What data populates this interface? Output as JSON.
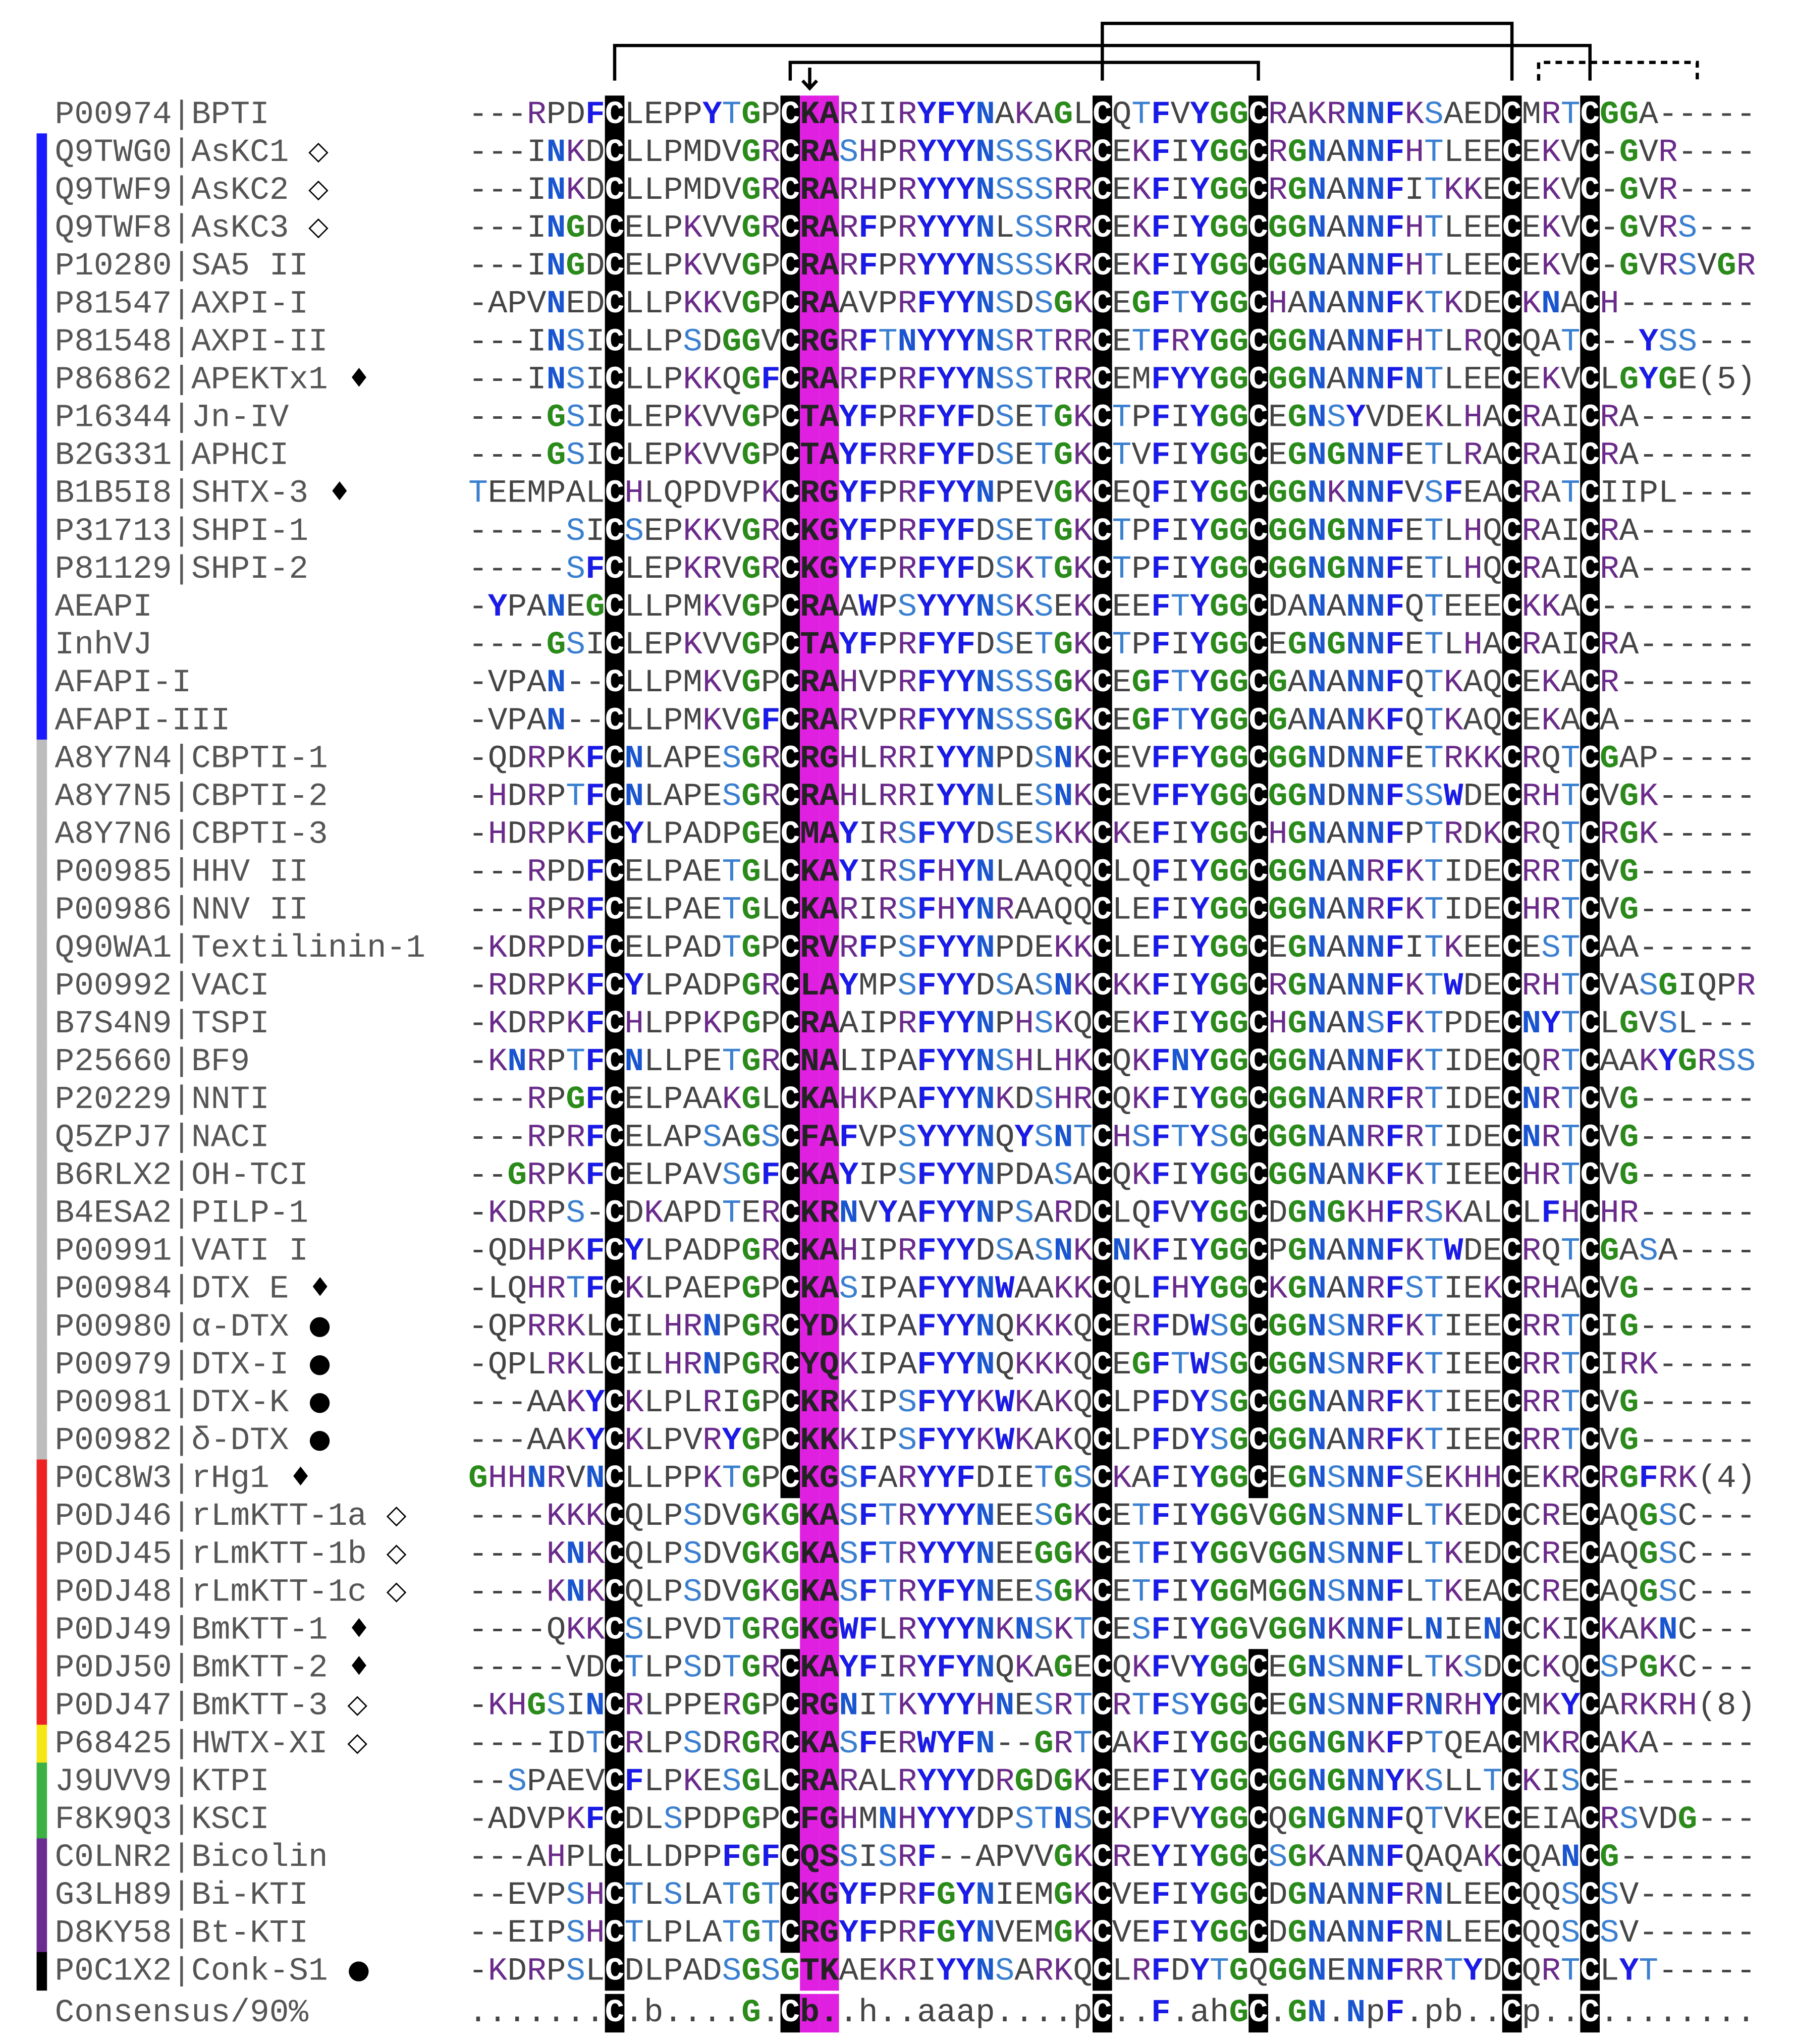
{
  "alignment": {
    "rows": [
      {
        "label": "P00974|BPTI",
        "sequence": "---RPDFCLEPPYTGPCKARIIRYFYNAKAGLCQTFVYGGCRAKRNNFKSAEDCMRTCGGA-----"
      },
      {
        "label": "Q9TWG0|AsKC1",
        "marker": "◇",
        "bar": "#1a1aff",
        "sequence": "---INKDCLLPMDVGRCRASHPRYYYNSSSKRCEKFIYGGCRGNANNFHTLEECEKVC-GVR----"
      },
      {
        "label": "Q9TWF9|AsKC2",
        "marker": "◇",
        "bar": "#1a1aff",
        "sequence": "---INKDCLLPMDVGRCRARHPRYYYNSSSRRCEKFIYGGCRGNANNFITKKECEKVC-GVR----"
      },
      {
        "label": "Q9TWF8|AsKC3",
        "marker": "◇",
        "bar": "#1a1aff",
        "sequence": "---INGDCELPKVVGRCRARFPRYYYNLSSRRCEKFIYGGCGGNANNFHTLEECEKVC-GVRS---"
      },
      {
        "label": "P10280|SA5 II",
        "bar": "#1a1aff",
        "sequence": "---INGDCELPKVVGPCRARFPRYYYNSSSKRCEKFIYGGCGGNANNFHTLEECEKVC-GVRSVGR"
      },
      {
        "label": "P81547|AXPI-I",
        "bar": "#1a1aff",
        "sequence": "-APVNEDCLLPKKVGPCRAAVPRFYYNSDSGKCEGFTYGGCHANANNFKTKDECKNACH-------"
      },
      {
        "label": "P81548|AXPI-II",
        "bar": "#1a1aff",
        "sequence": "---INSICLLPSDGGVCRGRFTNYYYNSRTRRCETFRYGGCGGNANNFHTLRQCQATC--YSS---"
      },
      {
        "label": "P86862|APEKTx1",
        "marker": "♦",
        "bar": "#1a1aff",
        "sequence": "---INSICLLPKKQGFCRARFPRFYYNSSTRRCEMFYYGGCGGNANNFNTLEECEKVCLGYGE(5)"
      },
      {
        "label": "P16344|Jn-IV",
        "bar": "#1a1aff",
        "sequence": "----GSICLEPKVVGPCTAYFPRFYFDSETGKCTPFIYGGCEGNSYVDEKLHACRAICRA------"
      },
      {
        "label": "B2G331|APHCI",
        "bar": "#1a1aff",
        "sequence": "----GSICLEPKVVGPCTAYFRRFYFDSETGKCTVFIYGGCEGNGNNFETLRACRAICRA------"
      },
      {
        "label": "B1B5I8|SHTX-3",
        "marker": "♦",
        "bar": "#1a1aff",
        "sequence": "TEEMPALCHLQPDVPKCRGYFPRFYYNPEVGKCEQFIYGGCGGNKNNFVSFEACRATCIIPL----"
      },
      {
        "label": "P31713|SHPI-1",
        "bar": "#1a1aff",
        "sequence": "-----SICSEPKKVGRCKGYFPRFYFDSETGKCTPFIYGGCGGNGNNFETLHQCRAICRA------"
      },
      {
        "label": "P81129|SHPI-2",
        "bar": "#1a1aff",
        "sequence": "-----SFCLEPKRVGRCKGYFPRFYFDSKTGKCTPFIYGGCGGNGNNFETLHQCRAICRA------"
      },
      {
        "label": "AEAPI",
        "bar": "#1a1aff",
        "sequence": "-YPANEGCLLPMKVGPCRAAWPSYYYNSKSEKCEEFTYGGCDANANNFQTEEECKKAC--------"
      },
      {
        "label": "InhVJ",
        "bar": "#1a1aff",
        "sequence": "----GSICLEPKVVGPCTAYFPRFYFDSETGKCTPFIYGGCEGNGNNFETLHACRAICRA------"
      },
      {
        "label": "AFAPI-I",
        "bar": "#1a1aff",
        "sequence": "-VPAN--CLLPMKVGPCRAHVPRFYYNSSSGKCEGFTYGGCGANANNFQTKAQCEKACR-------"
      },
      {
        "label": "AFAPI-III",
        "bar": "#1a1aff",
        "sequence": "-VPAN--CLLPMKVGFCRARVPRFYYNSSSGKCEGFTYGGCGANANKFQTKAQCEKACA-------"
      },
      {
        "label": "A8Y7N4|CBPTI-1",
        "bar": "#bdbdbd",
        "sequence": "-QDRPKFCNLAPESGRCRGHLRRIYYNPDSNKCEVFFYGGCGGNDNNFETRKKCRQTCGAP-----"
      },
      {
        "label": "A8Y7N5|CBPTI-2",
        "bar": "#bdbdbd",
        "sequence": "-HDRPTFCNLAPESGRCRAHLRRIYYNLESNKCEVFFYGGCGGNDNNFSSWDECRHTCVGK-----"
      },
      {
        "label": "A8Y7N6|CBPTI-3",
        "bar": "#bdbdbd",
        "sequence": "-HDRPKFCYLPADPGECMAYIRSFYYDSESKKCKEFIYGGCHGNANNFPTRDKCRQTCRGK-----"
      },
      {
        "label": "P00985|HHV II",
        "bar": "#bdbdbd",
        "sequence": "---RPDFCELPAETGLCKAYIRSFHYNLAAQQCLQFIYGGCGGNANRFKTIDECRRTCVG------"
      },
      {
        "label": "P00986|NNV II",
        "bar": "#bdbdbd",
        "sequence": "---RPRFCELPAETGLCKARIRSFHYNRAAQQCLEFIYGGCGGNANRFKTIDECHRTCVG------"
      },
      {
        "label": "Q90WA1|Textilinin-1",
        "bar": "#bdbdbd",
        "sequence": "-KDRPDFCELPADTGPCRVRFPSFYYNPDEKKCLEFIYGGCEGNANNFITKEECESTCAA------"
      },
      {
        "label": "P00992|VACI",
        "bar": "#bdbdbd",
        "sequence": "-RDRPKFCYLPADPGRCLAYMPSFYYDSASNKCKKFIYGGCRGNANNFKTWDECRHTCVASGIQPR"
      },
      {
        "label": "B7S4N9|TSPI",
        "bar": "#bdbdbd",
        "sequence": "-KDRPKFCHLPPKPGPCRAAIPRFYYNPHSKQCEKFIYGGCHGNANSFKTPDECNYTCLGVSL---"
      },
      {
        "label": "P25660|BF9",
        "bar": "#bdbdbd",
        "sequence": "-KNRPTFCNLLPETGRCNALIPAFYYNSHLHKCQKFNYGGCGGNANNFKTIDECQRTCAAKYGRSS"
      },
      {
        "label": "P20229|NNTI",
        "bar": "#bdbdbd",
        "sequence": "---RPGFCELPAAKGLCKAHKPAFYYNKDSHRCQKFIYGGCGGNANRFRTIDECNRTCVG------"
      },
      {
        "label": "Q5ZPJ7|NACI",
        "bar": "#bdbdbd",
        "sequence": "---RPRFCELAPSAGSCFAFVPSYYYNQYSNTCHSFTYSGCGGNANRFRTIDECNRTCVG------"
      },
      {
        "label": "B6RLX2|OH-TCI",
        "bar": "#bdbdbd",
        "sequence": "--GRPKFCELPAVSGFCKAYIPSFYYNPDASACQKFIYGGCGGNANKFKTIEECHRTCVG------"
      },
      {
        "label": "B4ESA2|PILP-1",
        "bar": "#bdbdbd",
        "sequence": "-KDRPS-CDKAPDTERCKRNVYAFYYNPSARDCLQFVYGGCDGNGKHFRSKALCLFHCHR------"
      },
      {
        "label": "P00991|VATI I",
        "bar": "#bdbdbd",
        "sequence": "-QDHPKFCYLPADPGRCKAHIPRFYYDSASNKCNKFIYGGCPGNANNFKTWDECRQTCGASA----"
      },
      {
        "label": "P00984|DTX E",
        "marker": "♦",
        "bar": "#bdbdbd",
        "sequence": "-LQHRTFCKLPAEPGPCKASIPAFYYNWAAKKCQLFHYGGCKGNANRFSTIEKCRHACVG------"
      },
      {
        "label": "P00980|α-DTX",
        "marker": "●",
        "bar": "#bdbdbd",
        "sequence": "-QPRRKLCILHRNPGRCYDKIPAFYYNQKKKQCERFDWSGCGGNSNRFKTIEECRRTCIG------"
      },
      {
        "label": "P00979|DTX-I",
        "marker": "●",
        "bar": "#bdbdbd",
        "sequence": "-QPLRKLCILHRNPGRCYQKIPAFYYNQKKKQCEGFTWSGCGGNSNRFKTIEECRRTCIRK-----"
      },
      {
        "label": "P00981|DTX-K",
        "marker": "●",
        "bar": "#bdbdbd",
        "sequence": "---AAKYCKLPLRIGPCKRKIPSFYYKWKAKQCLPFDYSGCGGNANRFKTIEECRRTCVG------"
      },
      {
        "label": "P00982|δ-DTX",
        "marker": "●",
        "bar": "#bdbdbd",
        "sequence": "---AAKYCKLPVRYGPCKKKIPSFYYKWKAKQCLPFDYSGCGGNANRFKTIEECRRTCVG------"
      },
      {
        "label": "P0C8W3|rHg1",
        "marker": "♦",
        "bar": "#ee2222",
        "sequence": "GHHNRVNCLLPPKTGPCKGSFARYYFDIETGSCKAFIYGGCEGNSNNFSEKHHCEKRCRGFRK(4)"
      },
      {
        "label": "P0DJ46|rLmKTT-1a",
        "marker": "◇",
        "bar": "#ee2222",
        "sequence": "----KKKCQLPSDVGKGKASFTRYYYNEESGKCETFIYGGVGGNSNNFLTKEDCCRECAQGSC---"
      },
      {
        "label": "P0DJ45|rLmKTT-1b",
        "marker": "◇",
        "bar": "#ee2222",
        "sequence": "----KNKCQLPSDVGKGKASFTRYYYNEEGGKCETFIYGGVGGNSNNFLTKEDCCRECAQGSC---"
      },
      {
        "label": "P0DJ48|rLmKTT-1c",
        "marker": "◇",
        "bar": "#ee2222",
        "sequence": "----KNKCQLPSDVGKGKASFTRYFYNEESGKCETFIYGGMGGNSNNFLTKEACCRECAQGSC---"
      },
      {
        "label": "P0DJ49|BmKTT-1",
        "marker": "♦",
        "bar": "#ee2222",
        "sequence": "----QKKCSLPVDTGRGKGWFLRYYYNKNSKTCESFIYGGVGGNKNNFLNIENCCKICKAKNC---"
      },
      {
        "label": "P0DJ50|BmKTT-2",
        "marker": "♦",
        "bar": "#ee2222",
        "sequence": "-----VDCTLPSDTGRCKAYFIRYFYNQKAGECQKFVYGGCEGNSNNFLTKSDCCKQCSPGKC---"
      },
      {
        "label": "P0DJ47|BmKTT-3",
        "marker": "◇",
        "bar": "#ee2222",
        "sequence": "-KHGSINCRLPPERGPCRGNITKYYYHNESRTCRTFSYGGCEGNSNNFRNRHYCMKYCARKRH(8)"
      },
      {
        "label": "P68425|HWTX-XI",
        "marker": "◇",
        "bar": "#f5e618",
        "sequence": "----IDTCRLPSDRGRCKASFERWYFN--GRTCAKFIYGGCGGNGNKFPTQEACMKRCAKA-----"
      },
      {
        "label": "J9UVV9|KTPI",
        "bar": "#3cb043",
        "sequence": "--SPAEVCFLPKESGLCRARALRYYYDRGDGKCEEFIYGGCGGNGNNYKSLLTCKISCE-------"
      },
      {
        "label": "F8K9Q3|KSCI",
        "bar": "#3cb043",
        "sequence": "-ADVPKFCDLSPDPGPCFGHMNHYYYDPSTNSCKPFVYGGCQGNGNNFQTVKECEIACRSVDG---"
      },
      {
        "label": "C0LNR2|Bicolin",
        "bar": "#6a2c91",
        "sequence": "---AHPLCLLDPPFGFCQSSISRF--APVVGKCREYIYGGCSGKANNFQAQAKCQANCG-------"
      },
      {
        "label": "G3LH89|Bi-KTI",
        "bar": "#6a2c91",
        "sequence": "--EVPSHCTLSLATGTCKGYFPRFGYNIEMGKCVEFIYGGCDGNANNFRNLEECQQSCSV------"
      },
      {
        "label": "D8KY58|Bt-KTI",
        "bar": "#6a2c91",
        "sequence": "--EIPSHCTLPLATGTCRGYFPRFGYNVEMGKCVEFIYGGCDGNANNFRNLEECQQSCSV------"
      },
      {
        "label": "P0C1X2|Conk-S1",
        "marker": "●",
        "bar": "#000000",
        "sequence": "-KDRPSLCDLPADSGSGTKAEKRIYYNSARKQCLRFDYTGQGGNENNFRRTYDCQRTCLYT-----"
      }
    ],
    "consensus": {
      "label": "Consensus/90%",
      "sequence": ".......C.b....G.Cb..h..aaap....pC..F.ahGC.GN.NpF.pb..Cp..C........"
    }
  }
}
